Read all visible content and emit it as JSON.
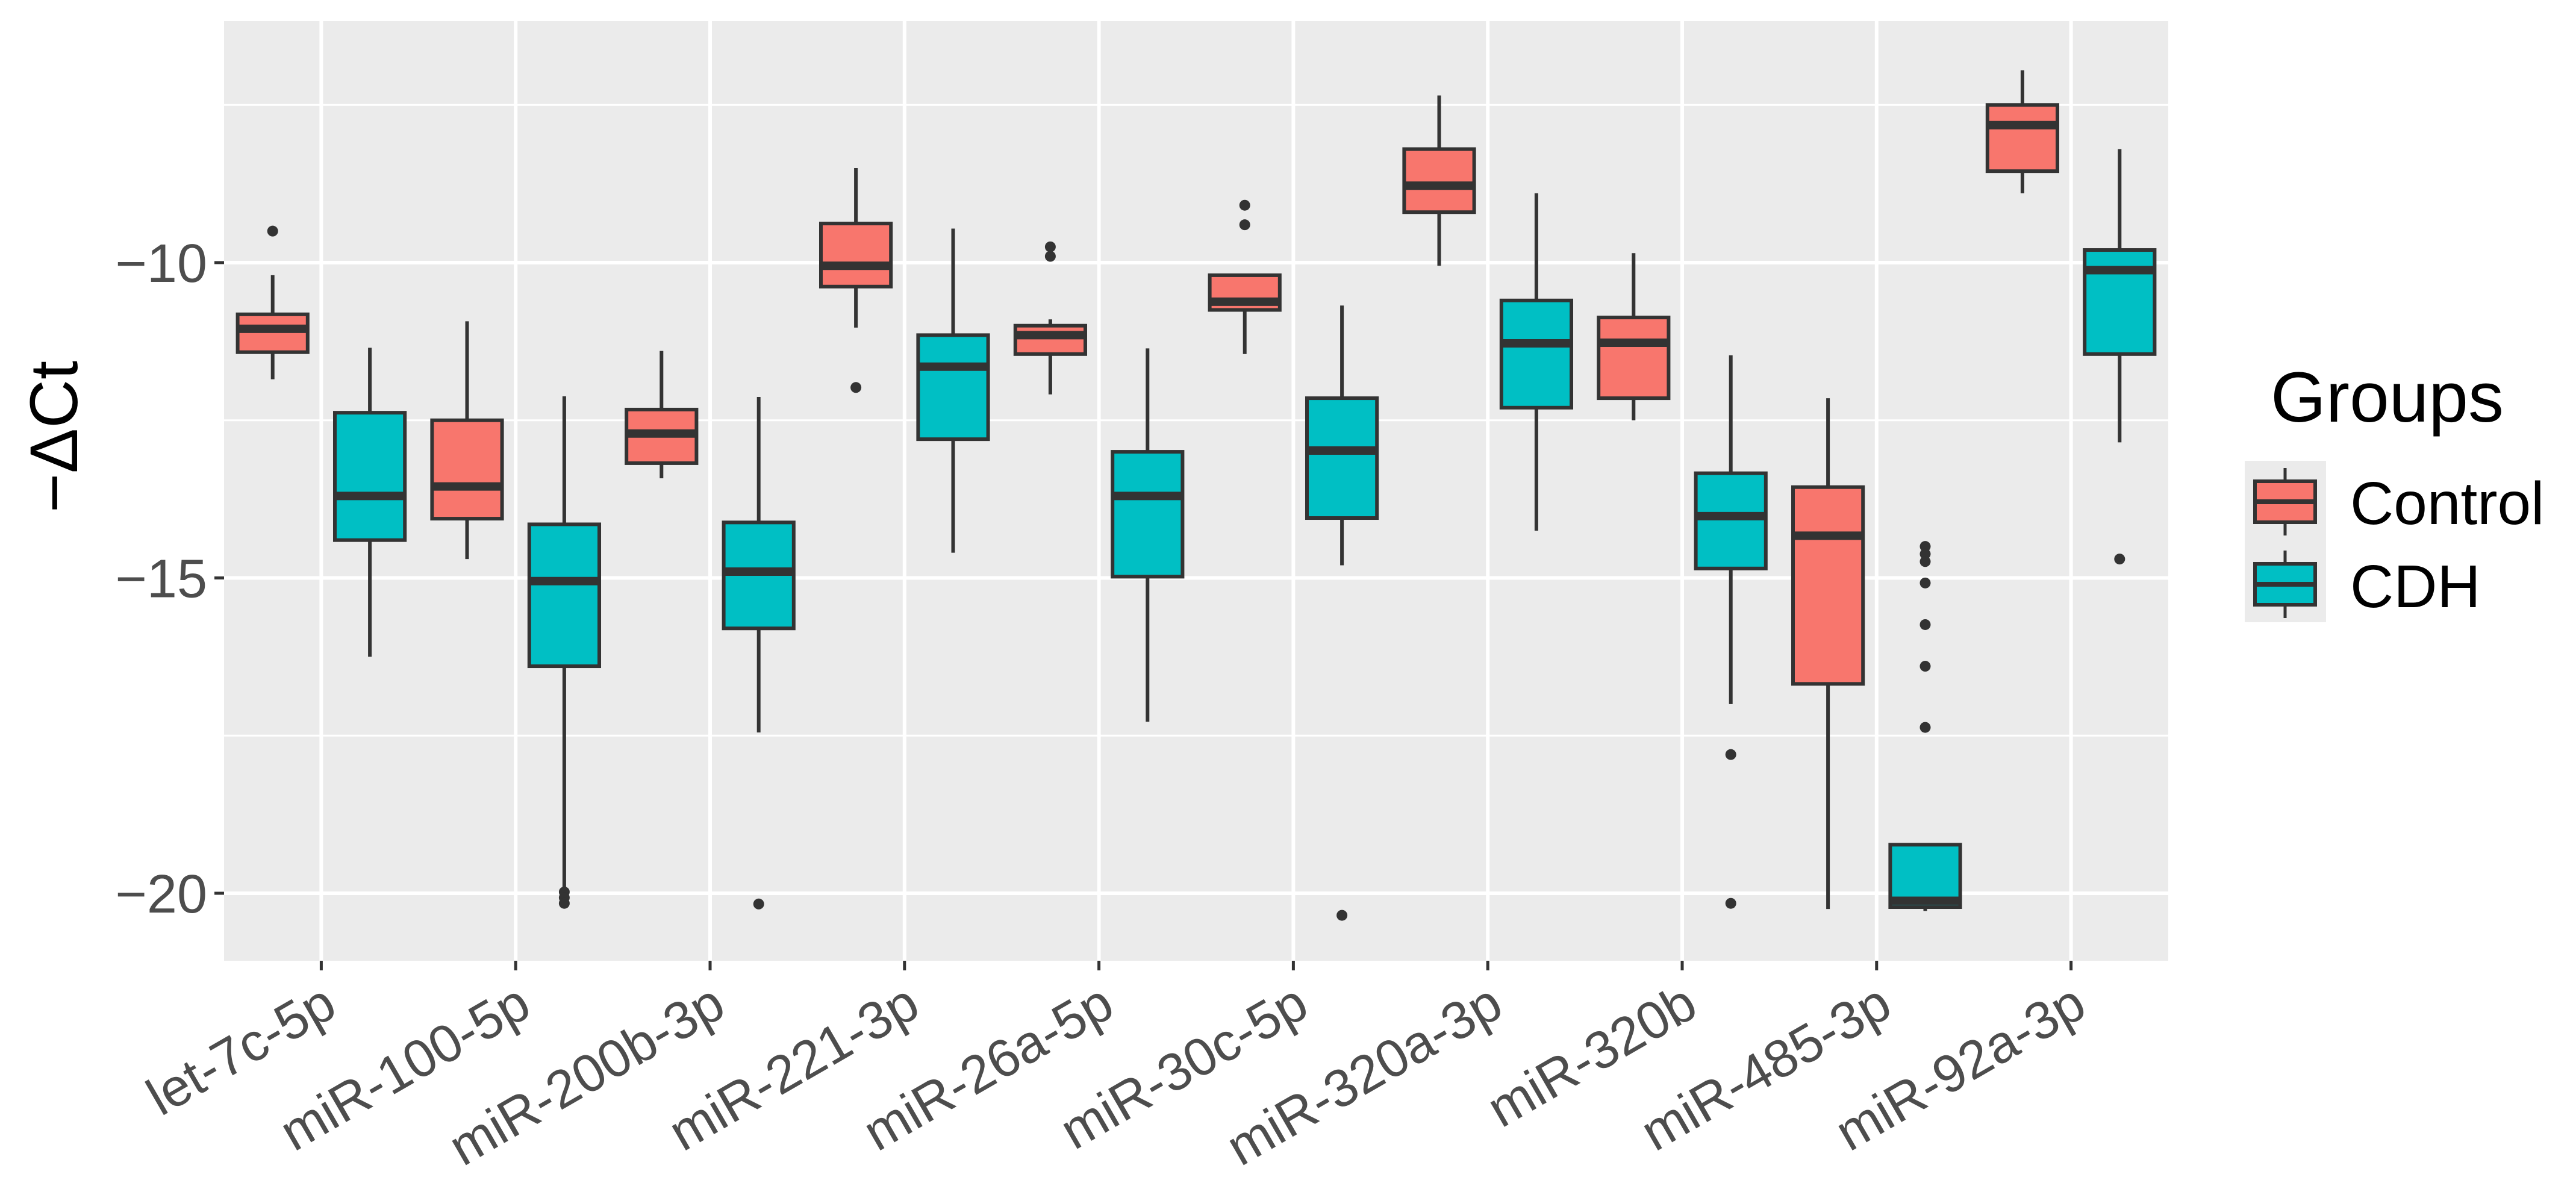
{
  "chart_data": {
    "type": "boxplot",
    "title": "",
    "xlabel": "",
    "ylabel": "−ΔCt",
    "ylim": [
      -21.07,
      -6.17
    ],
    "yticks": [
      -10,
      -15,
      -20
    ],
    "grid": true,
    "legend": {
      "title": "Groups",
      "position": "right",
      "entries": [
        "Control",
        "CDH"
      ]
    },
    "colors": {
      "Control": "#F8766D",
      "CDH": "#00BFC4",
      "panel": "#EBEBEB",
      "grid": "#FFFFFF",
      "outline": "#333333",
      "tick_text": "#4D4D4D"
    },
    "categories": [
      "let-7c-5p",
      "miR-100-5p",
      "miR-200b-3p",
      "miR-221-3p",
      "miR-26a-5p",
      "miR-30c-5p",
      "miR-320a-3p",
      "miR-320b",
      "miR-485-3p",
      "miR-92a-3p"
    ],
    "series": [
      {
        "name": "Control",
        "boxes": [
          {
            "whisker_low": -11.85,
            "q1": -11.42,
            "median": -11.05,
            "q3": -10.82,
            "whisker_high": -10.2,
            "outliers": [
              -9.5
            ]
          },
          {
            "whisker_low": -14.7,
            "q1": -14.06,
            "median": -13.55,
            "q3": -12.5,
            "whisker_high": -10.93,
            "outliers": []
          },
          {
            "whisker_low": -13.42,
            "q1": -13.18,
            "median": -12.71,
            "q3": -12.33,
            "whisker_high": -11.4,
            "outliers": []
          },
          {
            "whisker_low": -11.03,
            "q1": -10.38,
            "median": -10.05,
            "q3": -9.38,
            "whisker_high": -8.5,
            "outliers": [
              -11.98
            ]
          },
          {
            "whisker_low": -12.09,
            "q1": -11.45,
            "median": -11.15,
            "q3": -11.0,
            "whisker_high": -10.9,
            "outliers": [
              -9.75,
              -9.9
            ]
          },
          {
            "whisker_low": -11.45,
            "q1": -10.75,
            "median": -10.62,
            "q3": -10.2,
            "whisker_high": -10.2,
            "outliers": [
              -9.09,
              -9.4
            ]
          },
          {
            "whisker_low": -10.05,
            "q1": -9.2,
            "median": -8.78,
            "q3": -8.2,
            "whisker_high": -7.35,
            "outliers": []
          },
          {
            "whisker_low": -12.5,
            "q1": -12.15,
            "median": -11.27,
            "q3": -10.87,
            "whisker_high": -9.85,
            "outliers": []
          },
          {
            "whisker_low": -20.25,
            "q1": -16.68,
            "median": -14.33,
            "q3": -13.56,
            "whisker_high": -12.15,
            "outliers": []
          },
          {
            "whisker_low": -8.9,
            "q1": -8.55,
            "median": -7.82,
            "q3": -7.5,
            "whisker_high": -6.95,
            "outliers": []
          }
        ]
      },
      {
        "name": "CDH",
        "boxes": [
          {
            "whisker_low": -16.25,
            "q1": -14.4,
            "median": -13.7,
            "q3": -12.38,
            "whisker_high": -11.35,
            "outliers": []
          },
          {
            "whisker_low": -20.15,
            "q1": -16.4,
            "median": -15.05,
            "q3": -14.15,
            "whisker_high": -12.12,
            "outliers": [
              -19.98,
              -20.07,
              -20.16
            ]
          },
          {
            "whisker_low": -17.45,
            "q1": -15.8,
            "median": -14.9,
            "q3": -14.12,
            "whisker_high": -12.13,
            "outliers": [
              -20.17
            ]
          },
          {
            "whisker_low": -14.6,
            "q1": -12.8,
            "median": -11.65,
            "q3": -11.15,
            "whisker_high": -9.46,
            "outliers": []
          },
          {
            "whisker_low": -17.28,
            "q1": -14.98,
            "median": -13.7,
            "q3": -13.0,
            "whisker_high": -11.36,
            "outliers": []
          },
          {
            "whisker_low": -14.8,
            "q1": -14.05,
            "median": -12.98,
            "q3": -12.15,
            "whisker_high": -10.68,
            "outliers": [
              -20.35
            ]
          },
          {
            "whisker_low": -14.25,
            "q1": -12.3,
            "median": -11.28,
            "q3": -10.6,
            "whisker_high": -8.9,
            "outliers": []
          },
          {
            "whisker_low": -17.0,
            "q1": -14.85,
            "median": -14.02,
            "q3": -13.34,
            "whisker_high": -11.47,
            "outliers": [
              -17.8,
              -20.16
            ]
          },
          {
            "whisker_low": -20.28,
            "q1": -20.22,
            "median": -20.12,
            "q3": -19.23,
            "whisker_high": -19.23,
            "outliers": [
              -14.5,
              -14.62,
              -14.74,
              -15.08,
              -15.74,
              -16.4,
              -17.37
            ]
          },
          {
            "whisker_low": -12.85,
            "q1": -11.45,
            "median": -10.12,
            "q3": -9.8,
            "whisker_high": -8.2,
            "outliers": [
              -14.7
            ]
          }
        ]
      }
    ]
  }
}
